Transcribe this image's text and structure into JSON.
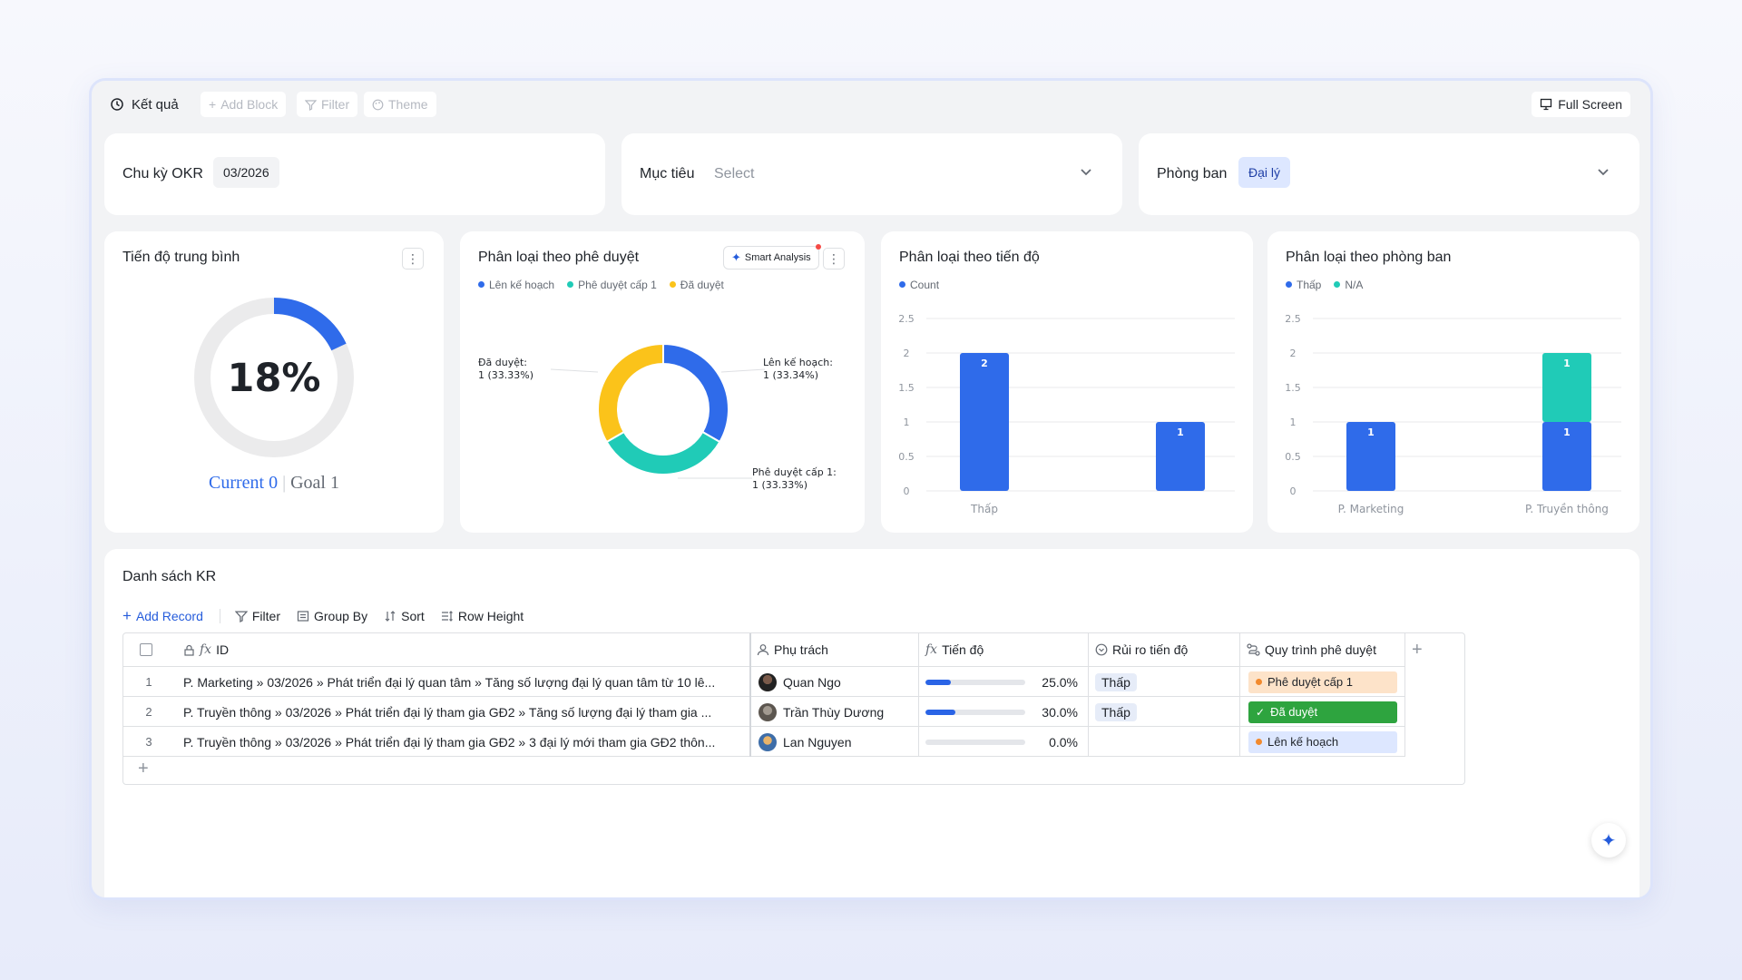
{
  "toolbar": {
    "result_label": "Kết quả",
    "add_block": "Add Block",
    "filter": "Filter",
    "theme": "Theme",
    "full_screen": "Full Screen"
  },
  "filters": {
    "cycle": {
      "label": "Chu kỳ OKR",
      "value": "03/2026"
    },
    "objective": {
      "label": "Mục tiêu",
      "placeholder": "Select"
    },
    "department": {
      "label": "Phòng ban",
      "value": "Đại lý"
    }
  },
  "progress_card": {
    "title": "Tiến độ trung bình",
    "percent_label": "18%",
    "percent": 18,
    "current": "Current 0",
    "goal": "Goal 1"
  },
  "approval_card": {
    "title": "Phân loại theo phê duyệt",
    "smart_analysis": "Smart Analysis",
    "legend": [
      "Lên kế hoạch",
      "Phê duyệt cấp 1",
      "Đã duyệt"
    ],
    "colors": [
      "#2f6bea",
      "#20cbb7",
      "#fbc31a"
    ],
    "slices": [
      {
        "name": "Lên kế hoạch",
        "value": 1,
        "label1": "Lên kế hoạch:",
        "label2": "1 (33.34%)"
      },
      {
        "name": "Phê duyệt cấp 1",
        "value": 1,
        "label1": "Phê duyệt cấp 1:",
        "label2": "1 (33.33%)"
      },
      {
        "name": "Đã duyệt",
        "value": 1,
        "label1": "Đã duyệt:",
        "label2": "1 (33.33%)"
      }
    ]
  },
  "chart_data": [
    {
      "type": "bar",
      "title": "Phân loại theo tiến độ",
      "legend": [
        "Count"
      ],
      "categories": [
        "Thấp",
        ""
      ],
      "series": [
        {
          "name": "Count",
          "values": [
            2,
            1
          ],
          "color": "#2f6bea"
        }
      ],
      "ylim": [
        0,
        2.5
      ],
      "yticks": [
        "0",
        "0.5",
        "1",
        "1.5",
        "2",
        "2.5"
      ]
    },
    {
      "type": "bar",
      "title": "Phân loại theo phòng ban",
      "legend": [
        "Thấp",
        "N/A"
      ],
      "categories": [
        "P. Marketing",
        "P. Truyền thông"
      ],
      "series": [
        {
          "name": "Thấp",
          "values": [
            1,
            1
          ],
          "color": "#2f6bea"
        },
        {
          "name": "N/A",
          "values": [
            0,
            1
          ],
          "color": "#20cbb7"
        }
      ],
      "stacked": true,
      "ylim": [
        0,
        2.5
      ],
      "yticks": [
        "0",
        "0.5",
        "1",
        "1.5",
        "2",
        "2.5"
      ]
    }
  ],
  "kr_list": {
    "title": "Danh sách KR",
    "tools": {
      "add_record": "Add Record",
      "filter": "Filter",
      "group_by": "Group By",
      "sort": "Sort",
      "row_height": "Row Height"
    },
    "columns": {
      "id": "ID",
      "owner": "Phụ trách",
      "progress": "Tiến độ",
      "risk": "Rủi ro tiến độ",
      "flow": "Quy trình phê duyệt"
    },
    "rows": [
      {
        "num": "1",
        "id": "P. Marketing » 03/2026 » Phát triển đại lý quan tâm » Tăng số lượng đại lý quan tâm từ 10 lê...",
        "owner": "Quan Ngo",
        "progress": 0.25,
        "progress_label": "25.0%",
        "risk": "Thấp",
        "flow": "Phê duyệt cấp 1"
      },
      {
        "num": "2",
        "id": "P. Truyền thông » 03/2026 » Phát triển đại lý tham gia GĐ2 » Tăng số lượng đại lý tham gia ...",
        "owner": "Trần Thùy Dương",
        "progress": 0.3,
        "progress_label": "30.0%",
        "risk": "Thấp",
        "flow": "Đã duyệt"
      },
      {
        "num": "3",
        "id": "P. Truyền thông » 03/2026 » Phát triển đại lý tham gia GĐ2 » 3 đại lý mới tham gia GĐ2 thôn...",
        "owner": "Lan Nguyen",
        "progress": 0.0,
        "progress_label": "0.0%",
        "risk": "",
        "flow": "Lên kế hoạch"
      }
    ]
  }
}
